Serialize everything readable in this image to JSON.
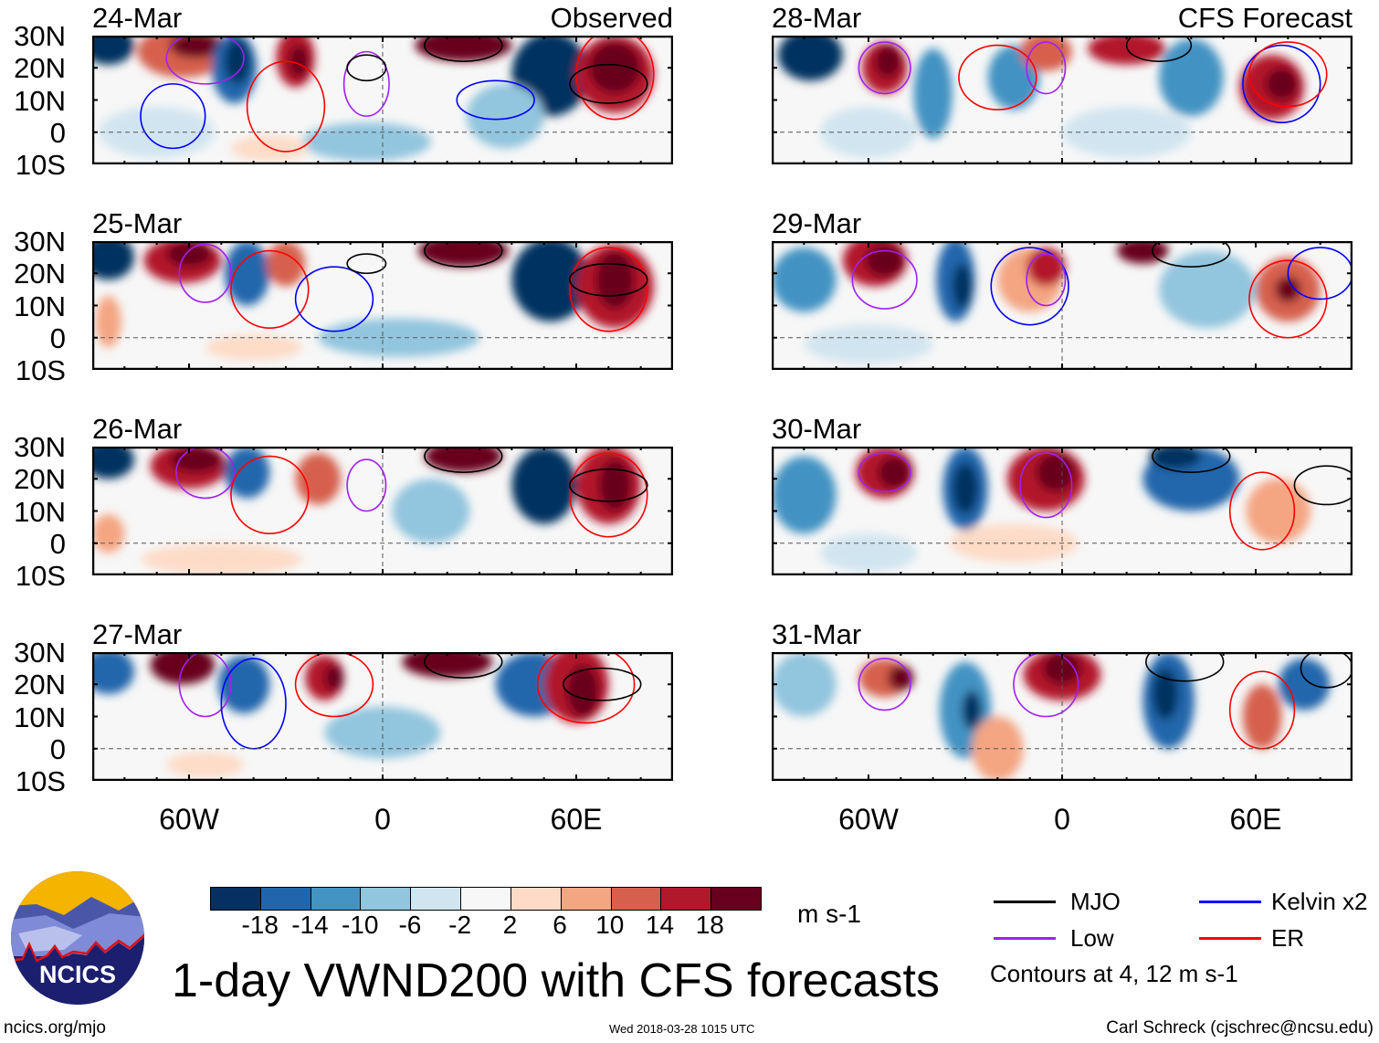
{
  "panels": [
    {
      "date": "24-Mar",
      "tag": "Observed"
    },
    {
      "date": "28-Mar",
      "tag": "CFS Forecast"
    },
    {
      "date": "25-Mar",
      "tag": ""
    },
    {
      "date": "29-Mar",
      "tag": ""
    },
    {
      "date": "26-Mar",
      "tag": ""
    },
    {
      "date": "30-Mar",
      "tag": ""
    },
    {
      "date": "27-Mar",
      "tag": ""
    },
    {
      "date": "31-Mar",
      "tag": ""
    }
  ],
  "lat_labels": [
    "30N",
    "20N",
    "10N",
    "0",
    "10S"
  ],
  "lon_labels": [
    "60W",
    "0",
    "60E"
  ],
  "colorbar": {
    "colors": [
      "#053061",
      "#2166ac",
      "#4393c3",
      "#92c5de",
      "#d1e5f0",
      "#f7f7f7",
      "#fddbc7",
      "#f4a582",
      "#d6604d",
      "#b2182b",
      "#67001f"
    ],
    "labels": [
      "-18",
      "-14",
      "-10",
      "-6",
      "-2",
      "2",
      "6",
      "10",
      "14",
      "18"
    ],
    "units": "m s-1"
  },
  "legend": {
    "items": [
      {
        "label": "MJO",
        "color": "#000000"
      },
      {
        "label": "Kelvin x2",
        "color": "#0000ff"
      },
      {
        "label": "Low",
        "color": "#a020f0"
      },
      {
        "label": "ER",
        "color": "#ff0000"
      }
    ],
    "contours_note": "Contours at 4, 12 m s-1"
  },
  "logo": {
    "text": "NCICS"
  },
  "title": "1-day VWND200 with CFS forecasts",
  "footer": {
    "left": "ncics.org/mjo",
    "center": "Wed 2018-03-28 1015 UTC",
    "right": "Carl Schreck (cjschrec@ncsu.edu)"
  }
}
